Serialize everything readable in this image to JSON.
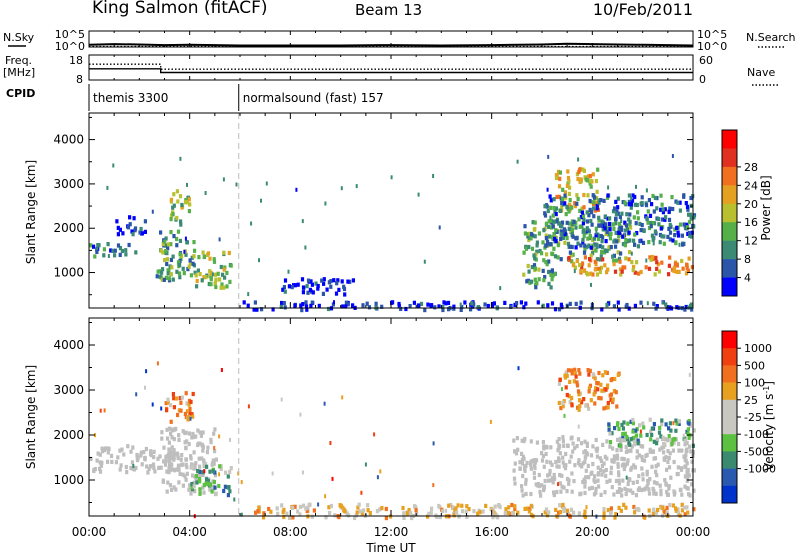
{
  "header": {
    "station": "King Salmon (fitACF)",
    "beam": "Beam 13",
    "date": "10/Feb/2011"
  },
  "colors": {
    "axis": "#000000",
    "cpid_divider": "#bdbdbd",
    "ground_scatter": "#bebebe",
    "power_scale": [
      "#0000ff",
      "#2b55a8",
      "#3a8a74",
      "#55b04a",
      "#b8c030",
      "#e4a020",
      "#f07020",
      "#e03020",
      "#ff0000"
    ],
    "velocity_scale": [
      "#0033cc",
      "#2a5ab0",
      "#3a8a70",
      "#5cc040",
      "#c8c8c0",
      "#c8c8c0",
      "#e8a020",
      "#f07020",
      "#f04010",
      "#ff0000"
    ]
  },
  "chart_data": [
    {
      "type": "line",
      "panel": "noise",
      "left_label": "N.Sky",
      "right_label": "N.Search",
      "y_ticks": [
        "10^5",
        "10^0"
      ],
      "right_ticks": [
        "10^5",
        "10^0"
      ],
      "y_scale": "log",
      "ylim": [
        1,
        100000
      ],
      "x_range_hours": [
        0,
        24
      ],
      "series": [
        {
          "style": "solid",
          "x": [
            0,
            1,
            2,
            3,
            4,
            5,
            6,
            8,
            10,
            12,
            14,
            16,
            18,
            19,
            20,
            21,
            22,
            23,
            24
          ],
          "y": [
            5,
            8,
            6,
            4,
            5,
            4,
            3,
            3,
            3,
            4,
            3,
            4,
            6,
            10,
            8,
            6,
            5,
            4,
            3
          ]
        },
        {
          "style": "dotted",
          "x": [
            0,
            4,
            8,
            12,
            16,
            20,
            24
          ],
          "y": [
            1.5,
            1.5,
            1.5,
            1.5,
            1.5,
            1.5,
            1.5
          ]
        }
      ]
    },
    {
      "type": "line",
      "panel": "frequency",
      "left_label_line1": "Freq.",
      "left_label_line2": "[MHz]",
      "right_label": "Nave",
      "y_ticks": [
        "18",
        "8"
      ],
      "right_ticks": [
        "60",
        "0"
      ],
      "ylim": [
        8,
        18
      ],
      "nave_ylim": [
        0,
        60
      ],
      "x_range_hours": [
        0,
        24
      ],
      "series": [
        {
          "quantity": "frequency",
          "style": "solid",
          "x": [
            0,
            2.85,
            2.85,
            24
          ],
          "y": [
            12.5,
            12.5,
            11,
            11
          ]
        },
        {
          "quantity": "nave",
          "style": "dotted",
          "x": [
            0,
            2.85,
            2.85,
            24
          ],
          "y": [
            38,
            38,
            26,
            26
          ]
        }
      ]
    },
    {
      "type": "table",
      "panel": "cpid",
      "label": "CPID",
      "segments": [
        {
          "start": 0,
          "end": 5.95,
          "name": "themis 3300"
        },
        {
          "start": 5.95,
          "end": 24,
          "name": "normalsound (fast) 157"
        }
      ]
    },
    {
      "type": "heatmap",
      "panel": "power",
      "xlabel": "",
      "ylabel": "Slant Range [km]",
      "ylim": [
        200,
        4600
      ],
      "y_ticks": [
        1000,
        2000,
        3000,
        4000
      ],
      "colorbar_title": "Power [dB]",
      "colorbar_range": [
        0,
        32
      ],
      "colorbar_ticks": [
        "4",
        "8",
        "12",
        "16",
        "20",
        "24",
        "28"
      ],
      "x_range_hours": [
        0,
        24
      ],
      "regions": [
        {
          "t0": 0.0,
          "t1": 1.8,
          "r0": 1400,
          "r1": 1700,
          "level": 2
        },
        {
          "t0": 1.0,
          "t1": 2.2,
          "r0": 1900,
          "r1": 2300,
          "level": 1
        },
        {
          "t0": 2.6,
          "t1": 4.2,
          "r0": 850,
          "r1": 2000,
          "level": 3
        },
        {
          "t0": 3.2,
          "t1": 4.0,
          "r0": 2100,
          "r1": 2900,
          "level": 4
        },
        {
          "t0": 4.2,
          "t1": 5.6,
          "r0": 700,
          "r1": 1500,
          "level": 4
        },
        {
          "t0": 6.0,
          "t1": 24.0,
          "r0": 200,
          "r1": 380,
          "level": 1
        },
        {
          "t0": 7.5,
          "t1": 10.5,
          "r0": 550,
          "r1": 900,
          "level": 1
        },
        {
          "t0": 17.2,
          "t1": 18.5,
          "r0": 700,
          "r1": 2200,
          "level": 3
        },
        {
          "t0": 18.5,
          "t1": 20.2,
          "r0": 2400,
          "r1": 3400,
          "level": 5
        },
        {
          "t0": 18.3,
          "t1": 21.5,
          "r0": 1300,
          "r1": 2200,
          "level": 3
        },
        {
          "t0": 19.0,
          "t1": 24.0,
          "r0": 1000,
          "r1": 1400,
          "level": 6
        },
        {
          "t0": 18.0,
          "t1": 24.0,
          "r0": 1600,
          "r1": 2800,
          "level": 2
        }
      ]
    },
    {
      "type": "heatmap",
      "panel": "velocity",
      "xlabel": "Time UT",
      "ylabel": "Slant Range [km]",
      "ylim": [
        200,
        4600
      ],
      "y_ticks": [
        1000,
        2000,
        3000,
        4000
      ],
      "colorbar_title": "Velocity [m s-1]",
      "colorbar_ticks": [
        "1000",
        "500",
        "100",
        "25",
        "-25",
        "-100",
        "-500",
        "-1000"
      ],
      "x_ticks": [
        "00:00",
        "04:00",
        "08:00",
        "12:00",
        "16:00",
        "20:00",
        "00:00"
      ],
      "x_range_hours": [
        0,
        24
      ],
      "regions": [
        {
          "t0": 0.0,
          "t1": 3.5,
          "r0": 1200,
          "r1": 1800,
          "level": "ground"
        },
        {
          "t0": 3.0,
          "t1": 4.1,
          "r0": 2300,
          "r1": 3000,
          "level": 7
        },
        {
          "t0": 2.8,
          "t1": 5.0,
          "r0": 700,
          "r1": 2200,
          "level": "ground"
        },
        {
          "t0": 4.0,
          "t1": 5.6,
          "r0": 700,
          "r1": 1400,
          "level": 3
        },
        {
          "t0": 6.0,
          "t1": 24.0,
          "r0": 200,
          "r1": 500,
          "level": 6
        },
        {
          "t0": 16.8,
          "t1": 24.0,
          "r0": 700,
          "r1": 2000,
          "level": "ground"
        },
        {
          "t0": 18.6,
          "t1": 21.0,
          "r0": 2600,
          "r1": 3500,
          "level": 7
        },
        {
          "t0": 20.5,
          "t1": 24.0,
          "r0": 1800,
          "r1": 2400,
          "level": 3
        }
      ]
    }
  ]
}
